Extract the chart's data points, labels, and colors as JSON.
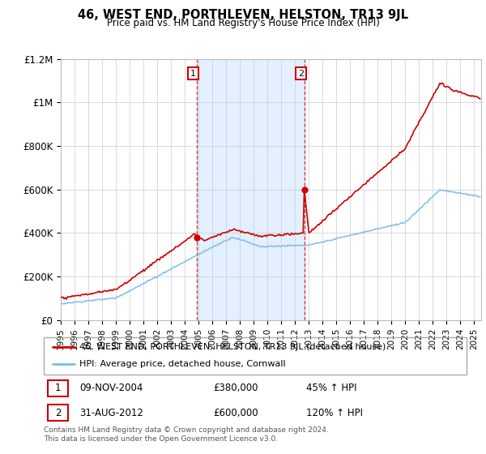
{
  "title": "46, WEST END, PORTHLEVEN, HELSTON, TR13 9JL",
  "subtitle": "Price paid vs. HM Land Registry's House Price Index (HPI)",
  "hpi_color": "#7cb9e8",
  "price_color": "#cc0000",
  "sale1_x": 2004.87,
  "sale1_y": 380000,
  "sale2_x": 2012.67,
  "sale2_y": 600000,
  "legend_label1": "46, WEST END, PORTHLEVEN, HELSTON, TR13 9JL (detached house)",
  "legend_label2": "HPI: Average price, detached house, Cornwall",
  "annotation1_num": "1",
  "annotation1_date": "09-NOV-2004",
  "annotation1_price": "£380,000",
  "annotation1_hpi": "45% ↑ HPI",
  "annotation2_num": "2",
  "annotation2_date": "31-AUG-2012",
  "annotation2_price": "£600,000",
  "annotation2_hpi": "120% ↑ HPI",
  "footer": "Contains HM Land Registry data © Crown copyright and database right 2024.\nThis data is licensed under the Open Government Licence v3.0.",
  "ylim_min": 0,
  "ylim_max": 1200000,
  "xmin": 1995.0,
  "xmax": 2025.5,
  "yticks": [
    0,
    200000,
    400000,
    600000,
    800000,
    1000000,
    1200000
  ],
  "ylabels": [
    "£0",
    "£200K",
    "£400K",
    "£600K",
    "£800K",
    "£1M",
    "£1.2M"
  ]
}
